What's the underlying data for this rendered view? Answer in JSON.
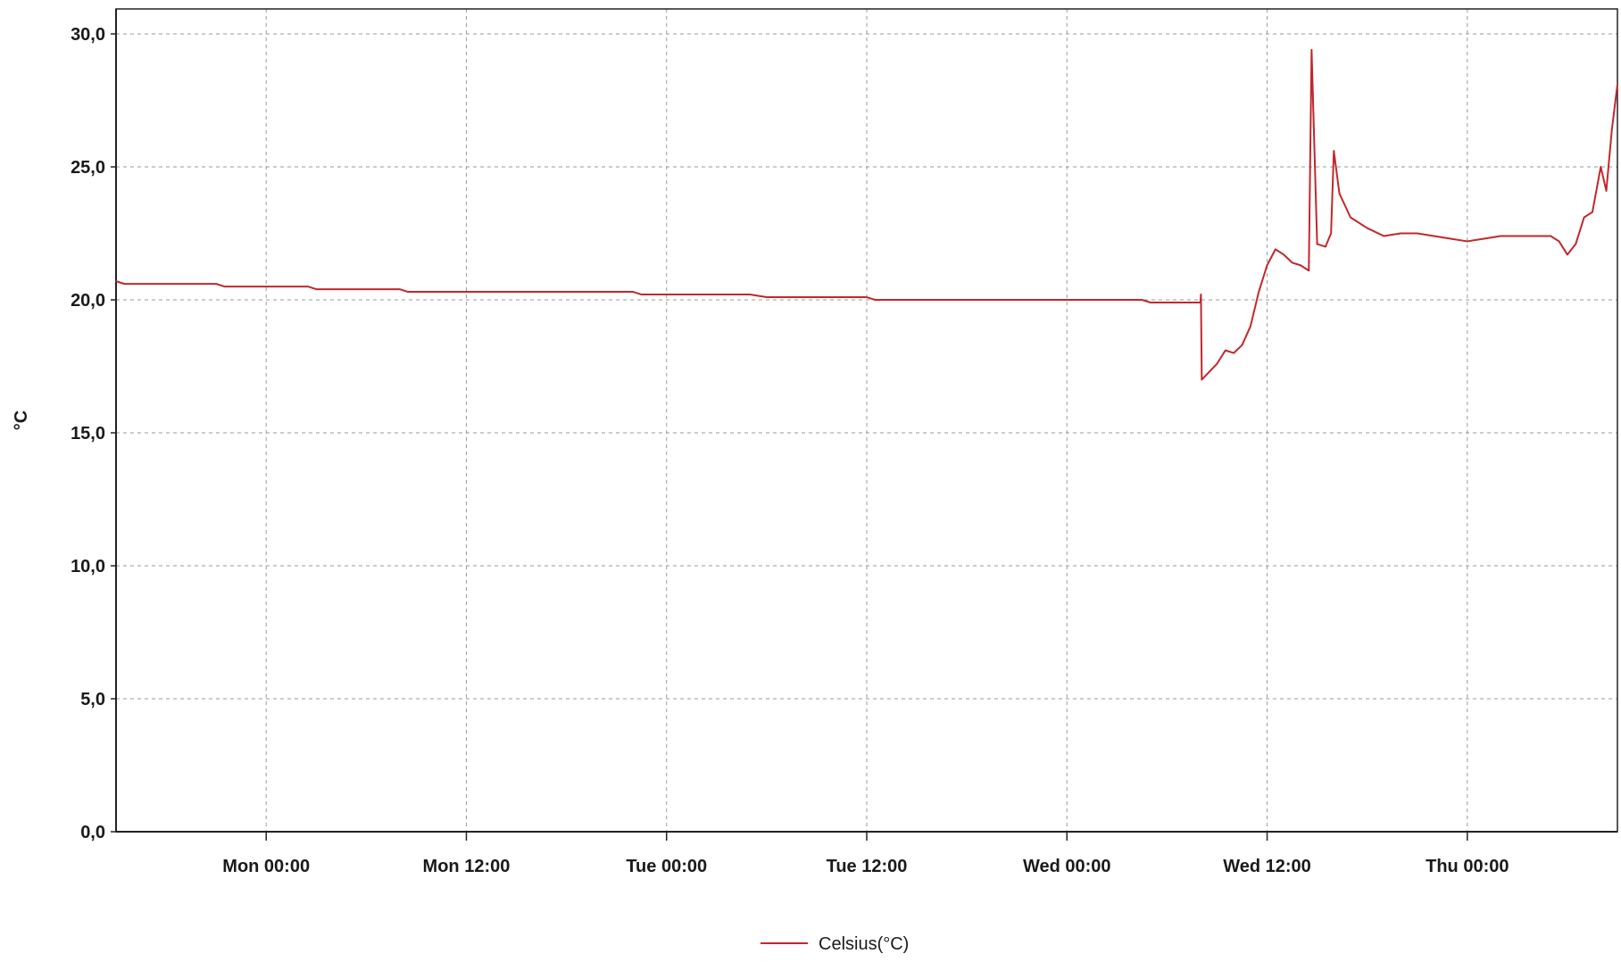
{
  "chart_data": {
    "type": "line",
    "title": "",
    "xlabel": "",
    "ylabel": "°C",
    "x_type": "time",
    "x_ticks": [
      "Mon 00:00",
      "Mon 12:00",
      "Tue 00:00",
      "Tue 12:00",
      "Wed 00:00",
      "Wed 12:00",
      "Thu 00:00"
    ],
    "xlim": [
      "Sun 15:00",
      "Thu 09:00"
    ],
    "ylim": [
      0,
      30
    ],
    "y_ticks": [
      "0,0",
      "5,0",
      "10,0",
      "15,0",
      "20,0",
      "25,0",
      "30,0"
    ],
    "grid": true,
    "legend_position": "bottom-center",
    "series": [
      {
        "name": "Celsius(°C)",
        "color": "#c0282d",
        "points": [
          [
            "Sun 15:00",
            20.7
          ],
          [
            "Sun 15:30",
            20.6
          ],
          [
            "Sun 21:00",
            20.6
          ],
          [
            "Sun 21:30",
            20.5
          ],
          [
            "Mon 02:30",
            20.5
          ],
          [
            "Mon 03:00",
            20.4
          ],
          [
            "Mon 08:00",
            20.4
          ],
          [
            "Mon 08:30",
            20.3
          ],
          [
            "Mon 22:00",
            20.3
          ],
          [
            "Mon 22:30",
            20.2
          ],
          [
            "Tue 05:00",
            20.2
          ],
          [
            "Tue 06:00",
            20.1
          ],
          [
            "Tue 12:00",
            20.1
          ],
          [
            "Tue 12:30",
            20.0
          ],
          [
            "Wed 04:30",
            20.0
          ],
          [
            "Wed 05:00",
            19.9
          ],
          [
            "Wed 08:00",
            19.9
          ],
          [
            "Wed 08:02",
            20.2
          ],
          [
            "Wed 08:05",
            17.0
          ],
          [
            "Wed 09:00",
            17.6
          ],
          [
            "Wed 09:30",
            18.1
          ],
          [
            "Wed 10:00",
            18.0
          ],
          [
            "Wed 10:30",
            18.3
          ],
          [
            "Wed 11:00",
            19.0
          ],
          [
            "Wed 11:30",
            20.3
          ],
          [
            "Wed 12:00",
            21.3
          ],
          [
            "Wed 12:30",
            21.9
          ],
          [
            "Wed 13:00",
            21.7
          ],
          [
            "Wed 13:30",
            21.4
          ],
          [
            "Wed 14:00",
            21.3
          ],
          [
            "Wed 14:30",
            21.1
          ],
          [
            "Wed 14:40",
            29.4
          ],
          [
            "Wed 15:00",
            22.1
          ],
          [
            "Wed 15:30",
            22.0
          ],
          [
            "Wed 15:50",
            22.5
          ],
          [
            "Wed 16:00",
            25.6
          ],
          [
            "Wed 16:20",
            24.0
          ],
          [
            "Wed 17:00",
            23.1
          ],
          [
            "Wed 18:00",
            22.7
          ],
          [
            "Wed 19:00",
            22.4
          ],
          [
            "Wed 20:00",
            22.5
          ],
          [
            "Wed 21:00",
            22.5
          ],
          [
            "Wed 22:00",
            22.4
          ],
          [
            "Wed 23:00",
            22.3
          ],
          [
            "Thu 00:00",
            22.2
          ],
          [
            "Thu 01:00",
            22.3
          ],
          [
            "Thu 02:00",
            22.4
          ],
          [
            "Thu 05:00",
            22.4
          ],
          [
            "Thu 05:30",
            22.2
          ],
          [
            "Thu 06:00",
            21.7
          ],
          [
            "Thu 06:30",
            22.1
          ],
          [
            "Thu 07:00",
            23.1
          ],
          [
            "Thu 07:30",
            23.3
          ],
          [
            "Thu 08:00",
            25.0
          ],
          [
            "Thu 08:20",
            24.1
          ],
          [
            "Thu 08:40",
            26.4
          ],
          [
            "Thu 09:00",
            28.1
          ]
        ]
      }
    ]
  }
}
